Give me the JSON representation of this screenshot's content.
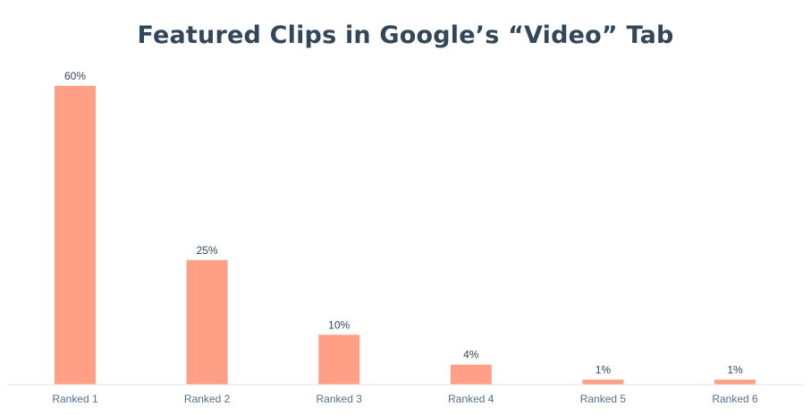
{
  "chart_data": {
    "type": "bar",
    "title": "Featured Clips in Google’s “Video” Tab",
    "xlabel": "",
    "ylabel": "",
    "categories": [
      "Ranked 1",
      "Ranked 2",
      "Ranked 3",
      "Ranked 4",
      "Ranked 5",
      "Ranked 6"
    ],
    "values": [
      60,
      25,
      10,
      4,
      1,
      1
    ],
    "data_labels": [
      "60%",
      "25%",
      "10%",
      "4%",
      "1%",
      "1%"
    ],
    "ylim": [
      0,
      60
    ],
    "grid": false,
    "legend": "none",
    "colors": {
      "bar": "#ff9f86",
      "axis": "#dfe3eb",
      "title": "#33475b",
      "tick_label": "#516f90",
      "data_label": "#33475b"
    }
  }
}
